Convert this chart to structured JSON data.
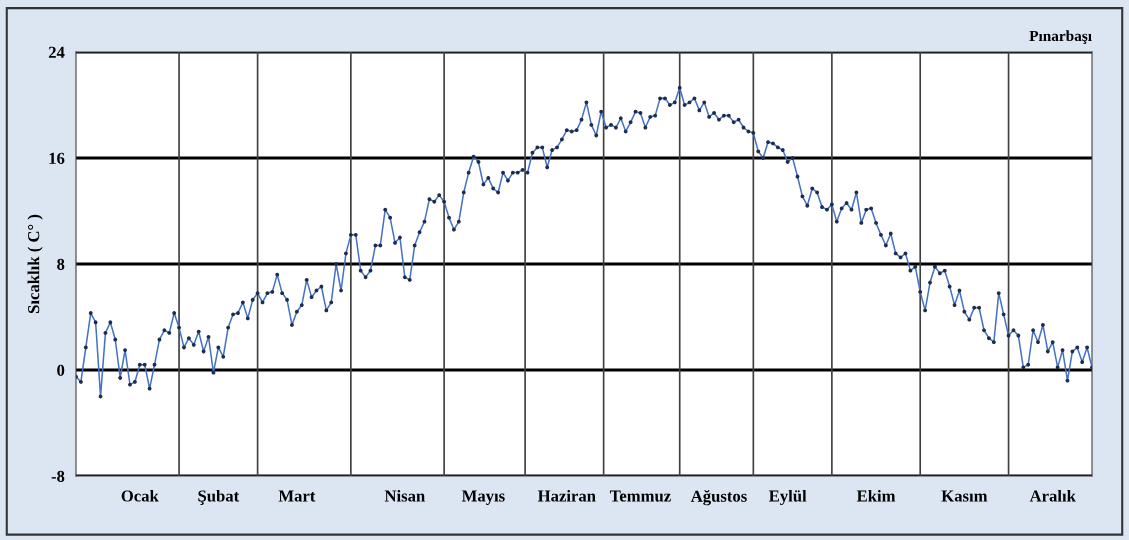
{
  "chart_data": {
    "type": "line",
    "title": "Pınarbaşı",
    "ylabel": "Sıcaklık ( C° )",
    "categories": [
      null,
      null,
      null,
      null,
      null,
      null,
      null,
      null,
      null,
      null,
      null,
      null,
      null,
      "Ocak",
      null,
      null,
      null,
      null,
      null,
      null,
      null,
      null,
      null,
      null,
      null,
      null,
      null,
      null,
      null,
      "Şubat",
      null,
      null,
      null,
      null,
      null,
      null,
      null,
      null,
      null,
      null,
      null,
      null,
      null,
      null,
      null,
      "Mart",
      null,
      null,
      null,
      null,
      null,
      null,
      null,
      null,
      null,
      null,
      null,
      null,
      null,
      null,
      null,
      null,
      null,
      null,
      null,
      null,
      null,
      "Nisan",
      null,
      null,
      null,
      null,
      null,
      null,
      null,
      null,
      null,
      null,
      null,
      null,
      null,
      null,
      null,
      "Mayıs",
      null,
      null,
      null,
      null,
      null,
      null,
      null,
      null,
      null,
      null,
      null,
      null,
      null,
      null,
      null,
      null,
      "Haziran",
      null,
      null,
      null,
      null,
      null,
      null,
      null,
      null,
      null,
      null,
      null,
      null,
      null,
      null,
      "Temmuz",
      null,
      null,
      null,
      null,
      null,
      null,
      null,
      null,
      null,
      null,
      null,
      null,
      null,
      null,
      null,
      "Ağustos",
      null,
      null,
      null,
      null,
      null,
      null,
      null,
      null,
      null,
      null,
      null,
      null,
      null,
      "Eylül",
      null,
      null,
      null,
      null,
      null,
      null,
      null,
      null,
      null,
      null,
      null,
      null,
      null,
      null,
      null,
      null,
      null,
      "Ekim",
      null,
      null,
      null,
      null,
      null,
      null,
      null,
      null,
      null,
      null,
      null,
      null,
      null,
      null,
      null,
      null,
      null,
      "Kasım",
      null,
      null,
      null,
      null,
      null,
      null,
      null,
      null,
      null,
      null,
      null,
      null,
      null,
      null,
      null,
      null,
      null,
      "Aralık",
      null,
      null,
      null,
      null,
      null,
      null,
      null,
      null
    ],
    "series": [
      {
        "color": "#4472c4",
        "values": [
          -0.5,
          -0.9,
          1.7,
          4.3,
          3.6,
          -2.0,
          2.8,
          3.6,
          2.3,
          -0.6,
          1.5,
          -1.1,
          -0.9,
          0.4,
          0.4,
          -1.4,
          0.4,
          2.3,
          3.0,
          2.8,
          4.3,
          3.2,
          1.7,
          2.4,
          1.9,
          2.9,
          1.4,
          2.5,
          -0.2,
          1.7,
          1.0,
          3.2,
          4.2,
          4.3,
          5.1,
          3.9,
          5.3,
          5.8,
          5.1,
          5.8,
          5.9,
          7.2,
          5.8,
          5.3,
          3.4,
          4.4,
          4.9,
          6.8,
          5.5,
          6.0,
          6.3,
          4.5,
          5.1,
          8.0,
          6.0,
          8.8,
          10.2,
          10.2,
          7.5,
          7.0,
          7.5,
          9.4,
          9.4,
          12.1,
          11.5,
          9.6,
          10.0,
          7.0,
          6.8,
          9.4,
          10.4,
          11.2,
          12.9,
          12.7,
          13.2,
          12.7,
          11.5,
          10.6,
          11.2,
          13.4,
          14.9,
          16.1,
          15.7,
          14.0,
          14.5,
          13.7,
          13.4,
          14.9,
          14.3,
          14.9,
          14.9,
          15.1,
          14.9,
          16.4,
          16.8,
          16.8,
          15.3,
          16.6,
          16.8,
          17.4,
          18.1,
          18.0,
          18.1,
          18.9,
          20.2,
          18.5,
          17.7,
          19.5,
          18.3,
          18.5,
          18.3,
          19.0,
          18.0,
          18.7,
          19.5,
          19.4,
          18.3,
          19.1,
          19.2,
          20.5,
          20.5,
          20.0,
          20.2,
          21.3,
          20.0,
          20.2,
          20.5,
          19.6,
          20.2,
          19.1,
          19.4,
          18.9,
          19.2,
          19.2,
          18.7,
          18.9,
          18.3,
          18.0,
          17.9,
          16.5,
          16.0,
          17.2,
          17.1,
          16.8,
          16.6,
          15.7,
          16.0,
          14.6,
          13.1,
          12.4,
          13.7,
          13.4,
          12.3,
          12.1,
          12.5,
          11.2,
          12.2,
          12.6,
          12.1,
          13.4,
          11.1,
          12.1,
          12.2,
          11.1,
          10.2,
          9.4,
          10.3,
          8.8,
          8.5,
          8.8,
          7.5,
          7.8,
          5.9,
          4.5,
          6.6,
          7.8,
          7.3,
          7.5,
          6.3,
          4.9,
          6.0,
          4.4,
          3.8,
          4.7,
          4.7,
          3.0,
          2.4,
          2.1,
          5.8,
          4.2,
          2.6,
          3.0,
          2.6,
          0.2,
          0.4,
          3.0,
          2.1,
          3.4,
          1.4,
          2.1,
          0.2,
          1.5,
          -0.8,
          1.4,
          1.7,
          0.6,
          1.7,
          0.2
        ]
      }
    ],
    "ylim": [
      -8,
      24
    ],
    "yticks": [
      -8,
      0,
      8,
      16,
      24
    ],
    "grid": true,
    "marker": "circle",
    "line_style": "solid"
  }
}
